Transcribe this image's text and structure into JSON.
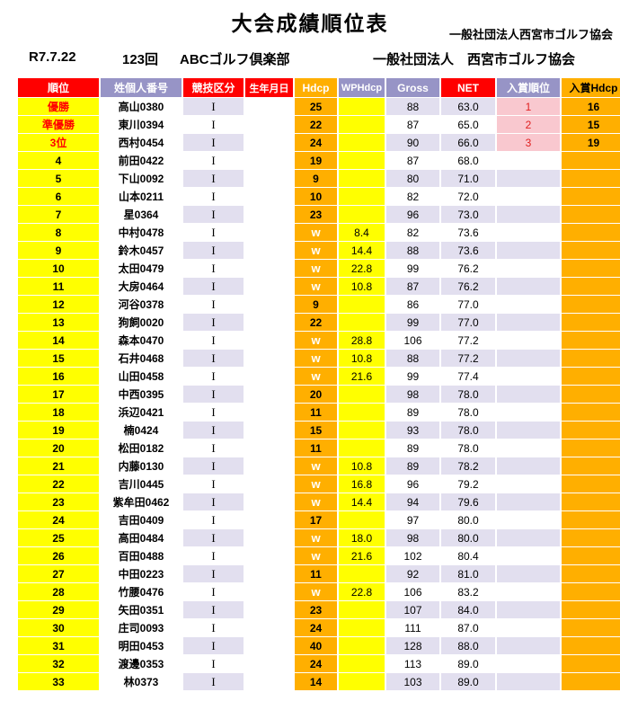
{
  "page": {
    "title": "大会成績順位表",
    "org_right": "一般社団法人西宮市ゴルフ協会",
    "meta": {
      "date": "R7.7.22",
      "round": "123回",
      "club": "ABCゴルフ倶楽部",
      "org": "一般社団法人　西宮市ゴルフ協会"
    }
  },
  "colors": {
    "header_red": "#FF0000",
    "header_purple": "#9794C6",
    "header_orange": "#FFAF00",
    "rank_yellow": "#FFFF00",
    "stripe_lavender": "#E2DFEF",
    "prize_pink": "#F9C8CF",
    "top3_text_red": "#FF0000"
  },
  "table": {
    "headers": [
      {
        "label": "順位"
      },
      {
        "label": "姓個人番号"
      },
      {
        "label": "競技区分"
      },
      {
        "label": "生年月日"
      },
      {
        "label": "Hdcp"
      },
      {
        "label": "WPHdcp"
      },
      {
        "label": "Gross"
      },
      {
        "label": "NET"
      },
      {
        "label": "入賞順位"
      },
      {
        "label": "入賞Hdcp"
      }
    ],
    "rows": [
      {
        "rank": "優勝",
        "name": "高山0380",
        "division": "I",
        "birth": "",
        "hdcp": "25",
        "wphdcp": "",
        "gross": "88",
        "net": "63.0",
        "prize_rank": "1",
        "prize_hdcp": "16"
      },
      {
        "rank": "準優勝",
        "name": "東川0394",
        "division": "I",
        "birth": "",
        "hdcp": "22",
        "wphdcp": "",
        "gross": "87",
        "net": "65.0",
        "prize_rank": "2",
        "prize_hdcp": "15"
      },
      {
        "rank": "3位",
        "name": "西村0454",
        "division": "I",
        "birth": "",
        "hdcp": "24",
        "wphdcp": "",
        "gross": "90",
        "net": "66.0",
        "prize_rank": "3",
        "prize_hdcp": "19"
      },
      {
        "rank": "4",
        "name": "前田0422",
        "division": "I",
        "birth": "",
        "hdcp": "19",
        "wphdcp": "",
        "gross": "87",
        "net": "68.0",
        "prize_rank": "",
        "prize_hdcp": ""
      },
      {
        "rank": "5",
        "name": "下山0092",
        "division": "I",
        "birth": "",
        "hdcp": "9",
        "wphdcp": "",
        "gross": "80",
        "net": "71.0",
        "prize_rank": "",
        "prize_hdcp": ""
      },
      {
        "rank": "6",
        "name": "山本0211",
        "division": "I",
        "birth": "",
        "hdcp": "10",
        "wphdcp": "",
        "gross": "82",
        "net": "72.0",
        "prize_rank": "",
        "prize_hdcp": ""
      },
      {
        "rank": "7",
        "name": "星0364",
        "division": "I",
        "birth": "",
        "hdcp": "23",
        "wphdcp": "",
        "gross": "96",
        "net": "73.0",
        "prize_rank": "",
        "prize_hdcp": ""
      },
      {
        "rank": "8",
        "name": "中村0478",
        "division": "I",
        "birth": "",
        "hdcp": "w",
        "wphdcp": "8.4",
        "gross": "82",
        "net": "73.6",
        "prize_rank": "",
        "prize_hdcp": ""
      },
      {
        "rank": "9",
        "name": "鈴木0457",
        "division": "I",
        "birth": "",
        "hdcp": "w",
        "wphdcp": "14.4",
        "gross": "88",
        "net": "73.6",
        "prize_rank": "",
        "prize_hdcp": ""
      },
      {
        "rank": "10",
        "name": "太田0479",
        "division": "I",
        "birth": "",
        "hdcp": "w",
        "wphdcp": "22.8",
        "gross": "99",
        "net": "76.2",
        "prize_rank": "",
        "prize_hdcp": ""
      },
      {
        "rank": "11",
        "name": "大房0464",
        "division": "I",
        "birth": "",
        "hdcp": "w",
        "wphdcp": "10.8",
        "gross": "87",
        "net": "76.2",
        "prize_rank": "",
        "prize_hdcp": ""
      },
      {
        "rank": "12",
        "name": "河谷0378",
        "division": "I",
        "birth": "",
        "hdcp": "9",
        "wphdcp": "",
        "gross": "86",
        "net": "77.0",
        "prize_rank": "",
        "prize_hdcp": ""
      },
      {
        "rank": "13",
        "name": "狗飼0020",
        "division": "I",
        "birth": "",
        "hdcp": "22",
        "wphdcp": "",
        "gross": "99",
        "net": "77.0",
        "prize_rank": "",
        "prize_hdcp": ""
      },
      {
        "rank": "14",
        "name": "森本0470",
        "division": "I",
        "birth": "",
        "hdcp": "w",
        "wphdcp": "28.8",
        "gross": "106",
        "net": "77.2",
        "prize_rank": "",
        "prize_hdcp": ""
      },
      {
        "rank": "15",
        "name": "石井0468",
        "division": "I",
        "birth": "",
        "hdcp": "w",
        "wphdcp": "10.8",
        "gross": "88",
        "net": "77.2",
        "prize_rank": "",
        "prize_hdcp": ""
      },
      {
        "rank": "16",
        "name": "山田0458",
        "division": "I",
        "birth": "",
        "hdcp": "w",
        "wphdcp": "21.6",
        "gross": "99",
        "net": "77.4",
        "prize_rank": "",
        "prize_hdcp": ""
      },
      {
        "rank": "17",
        "name": "中西0395",
        "division": "I",
        "birth": "",
        "hdcp": "20",
        "wphdcp": "",
        "gross": "98",
        "net": "78.0",
        "prize_rank": "",
        "prize_hdcp": ""
      },
      {
        "rank": "18",
        "name": "浜辺0421",
        "division": "I",
        "birth": "",
        "hdcp": "11",
        "wphdcp": "",
        "gross": "89",
        "net": "78.0",
        "prize_rank": "",
        "prize_hdcp": ""
      },
      {
        "rank": "19",
        "name": "楠0424",
        "division": "I",
        "birth": "",
        "hdcp": "15",
        "wphdcp": "",
        "gross": "93",
        "net": "78.0",
        "prize_rank": "",
        "prize_hdcp": ""
      },
      {
        "rank": "20",
        "name": "松田0182",
        "division": "I",
        "birth": "",
        "hdcp": "11",
        "wphdcp": "",
        "gross": "89",
        "net": "78.0",
        "prize_rank": "",
        "prize_hdcp": ""
      },
      {
        "rank": "21",
        "name": "内藤0130",
        "division": "I",
        "birth": "",
        "hdcp": "w",
        "wphdcp": "10.8",
        "gross": "89",
        "net": "78.2",
        "prize_rank": "",
        "prize_hdcp": ""
      },
      {
        "rank": "22",
        "name": "吉川0445",
        "division": "I",
        "birth": "",
        "hdcp": "w",
        "wphdcp": "16.8",
        "gross": "96",
        "net": "79.2",
        "prize_rank": "",
        "prize_hdcp": ""
      },
      {
        "rank": "23",
        "name": "紫牟田0462",
        "division": "I",
        "birth": "",
        "hdcp": "w",
        "wphdcp": "14.4",
        "gross": "94",
        "net": "79.6",
        "prize_rank": "",
        "prize_hdcp": ""
      },
      {
        "rank": "24",
        "name": "吉田0409",
        "division": "I",
        "birth": "",
        "hdcp": "17",
        "wphdcp": "",
        "gross": "97",
        "net": "80.0",
        "prize_rank": "",
        "prize_hdcp": ""
      },
      {
        "rank": "25",
        "name": "高田0484",
        "division": "I",
        "birth": "",
        "hdcp": "w",
        "wphdcp": "18.0",
        "gross": "98",
        "net": "80.0",
        "prize_rank": "",
        "prize_hdcp": ""
      },
      {
        "rank": "26",
        "name": "百田0488",
        "division": "I",
        "birth": "",
        "hdcp": "w",
        "wphdcp": "21.6",
        "gross": "102",
        "net": "80.4",
        "prize_rank": "",
        "prize_hdcp": ""
      },
      {
        "rank": "27",
        "name": "中田0223",
        "division": "I",
        "birth": "",
        "hdcp": "11",
        "wphdcp": "",
        "gross": "92",
        "net": "81.0",
        "prize_rank": "",
        "prize_hdcp": ""
      },
      {
        "rank": "28",
        "name": "竹腰0476",
        "division": "I",
        "birth": "",
        "hdcp": "w",
        "wphdcp": "22.8",
        "gross": "106",
        "net": "83.2",
        "prize_rank": "",
        "prize_hdcp": ""
      },
      {
        "rank": "29",
        "name": "矢田0351",
        "division": "I",
        "birth": "",
        "hdcp": "23",
        "wphdcp": "",
        "gross": "107",
        "net": "84.0",
        "prize_rank": "",
        "prize_hdcp": ""
      },
      {
        "rank": "30",
        "name": "庄司0093",
        "division": "I",
        "birth": "",
        "hdcp": "24",
        "wphdcp": "",
        "gross": "111",
        "net": "87.0",
        "prize_rank": "",
        "prize_hdcp": ""
      },
      {
        "rank": "31",
        "name": "明田0453",
        "division": "I",
        "birth": "",
        "hdcp": "40",
        "wphdcp": "",
        "gross": "128",
        "net": "88.0",
        "prize_rank": "",
        "prize_hdcp": ""
      },
      {
        "rank": "32",
        "name": "渡邊0353",
        "division": "I",
        "birth": "",
        "hdcp": "24",
        "wphdcp": "",
        "gross": "113",
        "net": "89.0",
        "prize_rank": "",
        "prize_hdcp": ""
      },
      {
        "rank": "33",
        "name": "林0373",
        "division": "I",
        "birth": "",
        "hdcp": "14",
        "wphdcp": "",
        "gross": "103",
        "net": "89.0",
        "prize_rank": "",
        "prize_hdcp": ""
      }
    ]
  }
}
